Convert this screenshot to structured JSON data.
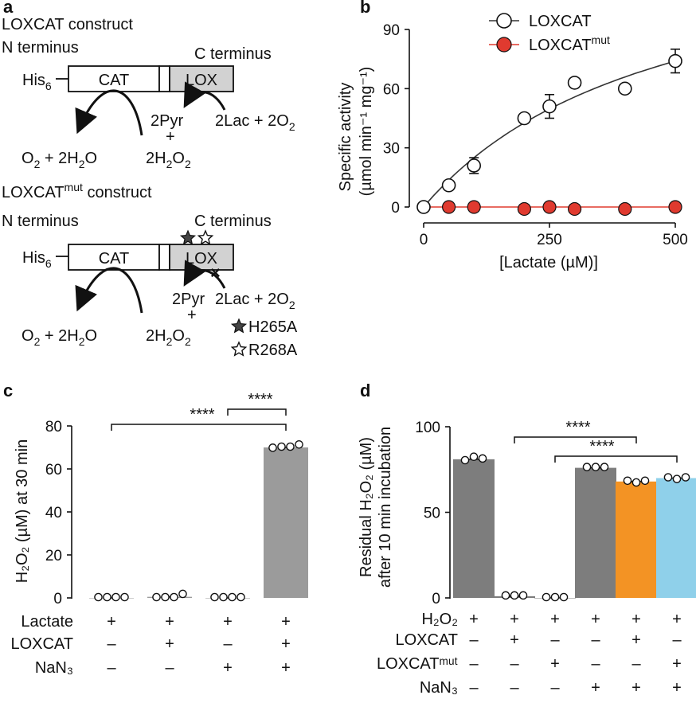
{
  "panels": {
    "a": "a",
    "b": "b",
    "c": "c",
    "d": "d"
  },
  "construct_a": {
    "title": "LOXCAT construct",
    "n_terminus": "N terminus",
    "c_terminus": "C terminus",
    "his_tag": "His",
    "his_sub": "6",
    "cat": "CAT",
    "lox": "LOX",
    "pyr": "2Pyr",
    "plus": "+",
    "lac": "2Lac + 2O",
    "lac_sub": "2",
    "o2_main": "O",
    "o2_sub": "2",
    "o2_rest": " + 2H",
    "o2_sub2": "2",
    "o2_end": "O",
    "h2o2_a": "2H",
    "h2o2_sub1": "2",
    "h2o2_b": "O",
    "h2o2_sub2": "2"
  },
  "construct_mut": {
    "title_main": "LOXCAT",
    "title_sup": "mut",
    "title_rest": " construct",
    "n_terminus": "N terminus",
    "c_terminus": "C terminus",
    "cross": "×",
    "legend": [
      {
        "label": "H265A",
        "icon": "filled-star"
      },
      {
        "label": "R268A",
        "icon": "open-star"
      }
    ]
  },
  "chart_data": [
    {
      "panel": "b",
      "type": "scatter",
      "xlabel": "[Lactate (µM)]",
      "ylabel_line1": "Specific activity",
      "ylabel_line2": "(µmol min⁻¹ mg⁻¹)",
      "xlim": [
        0,
        500
      ],
      "ylim": [
        0,
        90
      ],
      "xticks": [
        0,
        250,
        500
      ],
      "yticks": [
        0,
        30,
        60,
        90
      ],
      "legend_placement": "top-left",
      "series": [
        {
          "name": "LOXCAT",
          "marker": "open-circle",
          "x": [
            0,
            50,
            100,
            200,
            250,
            300,
            400,
            500
          ],
          "y": [
            0,
            11,
            21,
            45,
            51,
            63,
            60,
            74
          ],
          "err": [
            0,
            0,
            4,
            0,
            6,
            0,
            0,
            6
          ],
          "fit": true
        },
        {
          "name": "LOXCAT",
          "name_sup": "mut",
          "marker": "filled-circle",
          "color": "#e03a2f",
          "x": [
            0,
            50,
            100,
            200,
            250,
            300,
            400,
            500
          ],
          "y": [
            0,
            0,
            0,
            -1,
            0,
            -1,
            -1,
            0
          ],
          "line": true
        }
      ]
    },
    {
      "panel": "c",
      "type": "bar",
      "ylabel_main": "H",
      "ylabel_text": "H₂O₂ (µM) at 30 min",
      "ylim": [
        0,
        80
      ],
      "yticks": [
        0,
        20,
        40,
        60,
        80
      ],
      "bar_color": "#9b9b9b",
      "values": [
        0,
        0.5,
        0,
        70
      ],
      "points": [
        [
          0,
          0,
          0,
          0
        ],
        [
          0,
          0,
          0,
          1.5
        ],
        [
          0,
          0,
          0,
          0
        ],
        [
          69.5,
          70,
          70,
          71
        ]
      ],
      "conditions": [
        {
          "name": "Lactate",
          "marks": [
            "+",
            "+",
            "+",
            "+"
          ]
        },
        {
          "name": "LOXCAT",
          "marks": [
            "–",
            "+",
            "–",
            "+"
          ]
        },
        {
          "name": "NaN₃",
          "marks": [
            "–",
            "–",
            "+",
            "+"
          ]
        }
      ],
      "significance": [
        {
          "from": 0,
          "to": 3,
          "label": "****"
        },
        {
          "from": 2,
          "to": 3,
          "label": "****"
        }
      ]
    },
    {
      "panel": "d",
      "type": "bar",
      "ylabel_line1": "Residual H₂O₂ (µM)",
      "ylabel_line2": "after 10 min incubation",
      "ylim": [
        0,
        100
      ],
      "yticks": [
        0,
        50,
        100
      ],
      "values": [
        81,
        1,
        0,
        76,
        68,
        70
      ],
      "colors": [
        "#7d7d7d",
        "#7d7d7d",
        "#7d7d7d",
        "#7d7d7d",
        "#f39324",
        "#8fd0ea"
      ],
      "points": [
        [
          80,
          82,
          81
        ],
        [
          1,
          1,
          1
        ],
        [
          0,
          0,
          0
        ],
        [
          76,
          76,
          76
        ],
        [
          68,
          67,
          68
        ],
        [
          70,
          69,
          70
        ]
      ],
      "conditions": [
        {
          "name": "H₂O₂",
          "marks": [
            "+",
            "+",
            "+",
            "+",
            "+",
            "+"
          ]
        },
        {
          "name": "LOXCAT",
          "marks": [
            "–",
            "+",
            "–",
            "–",
            "+",
            "–"
          ]
        },
        {
          "name": "LOXCATᵐᵘᵗ",
          "marks": [
            "–",
            "–",
            "+",
            "–",
            "–",
            "+"
          ]
        },
        {
          "name": "NaN₃",
          "marks": [
            "–",
            "–",
            "–",
            "+",
            "+",
            "+"
          ]
        }
      ],
      "significance": [
        {
          "from": 1,
          "to": 4,
          "label": "****"
        },
        {
          "from": 2,
          "to": 5,
          "label": "****"
        }
      ]
    }
  ]
}
